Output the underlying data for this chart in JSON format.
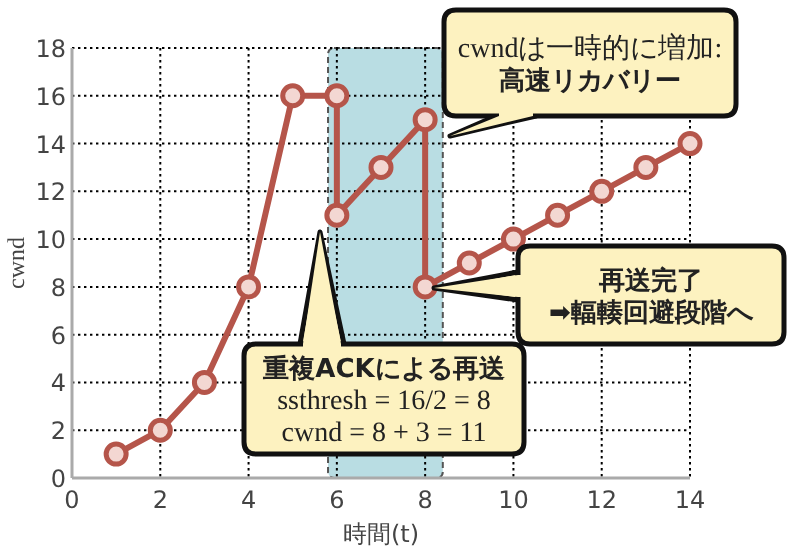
{
  "chart_data": {
    "type": "line",
    "xlabel": "時間(t)",
    "ylabel": "cwnd",
    "x": [
      1,
      2,
      3,
      4,
      5,
      6,
      6,
      7,
      8,
      8,
      9,
      10,
      11,
      12,
      13,
      14
    ],
    "series": [
      {
        "color": "#b5554a",
        "values": [
          1,
          2,
          4,
          8,
          16,
          16,
          11,
          13,
          15,
          8,
          9,
          10,
          11,
          12,
          13,
          14
        ]
      }
    ],
    "xlim": [
      0,
      14
    ],
    "ylim": [
      0,
      18
    ],
    "xticks": [
      0,
      2,
      4,
      6,
      8,
      10,
      12,
      14
    ],
    "yticks": [
      0,
      2,
      4,
      6,
      8,
      10,
      12,
      14,
      16,
      18
    ],
    "grid": true,
    "marker": "circle",
    "line_style": "solid",
    "bands": [
      {
        "axis": "x",
        "from": 5.8,
        "to": 8.4,
        "color": "#a8d4dc"
      }
    ],
    "annotations": [
      "重複ACKによる再送\nssthresh = 16/2 = 8\ncwnd = 8 + 3 = 11",
      "cwndは一時的に増加:\n高速リカバリー",
      "再送完了\n➡輻輳回避段階へ"
    ]
  }
}
